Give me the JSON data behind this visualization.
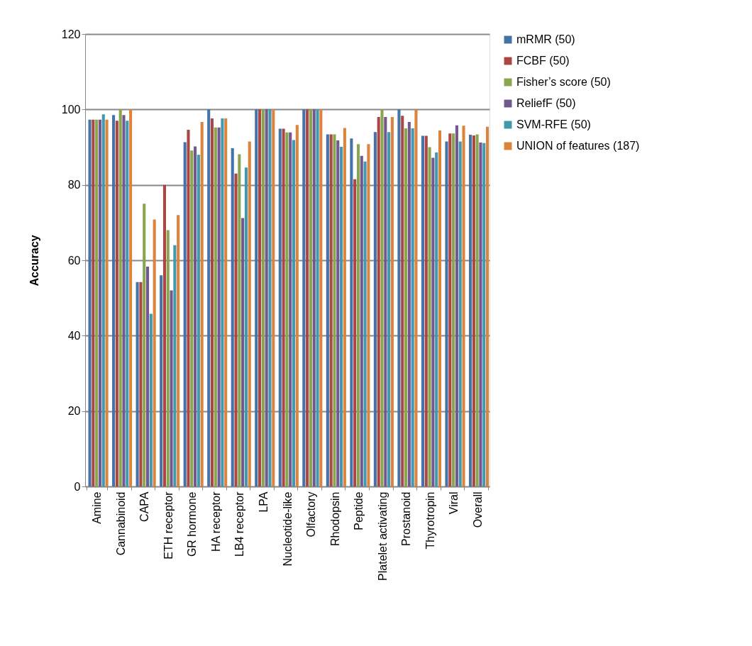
{
  "chart_data": {
    "type": "bar",
    "ylabel": "Accuracy",
    "categories": [
      "Amine",
      "Cannabinoid",
      "CAPA",
      "ETH receptor",
      "GR hormone",
      "HA receptor",
      "LB4 receptor",
      "LPA",
      "Nucleotide-like",
      "Olfactory",
      "Rhodopsin",
      "Peptide",
      "Platelet activating",
      "Prostanoid",
      "Thyrotropin",
      "Viral",
      "Overall"
    ],
    "series": [
      {
        "name": "mRMR (50)",
        "color": "#4572a7",
        "values": [
          97.3,
          98.5,
          54.2,
          56,
          91.3,
          100,
          89.7,
          100,
          94.9,
          100,
          93.4,
          92.3,
          94,
          100,
          93,
          91.5,
          93.3
        ]
      },
      {
        "name": "FCBF (50)",
        "color": "#aa4643",
        "values": [
          97.3,
          97,
          54.2,
          80,
          94.6,
          97.6,
          83,
          100,
          94.9,
          100,
          93.4,
          81.5,
          98,
          98.3,
          93,
          93.6,
          93.1
        ]
      },
      {
        "name": "Fisher’s score (50)",
        "color": "#89a54e",
        "values": [
          97.3,
          100,
          75,
          68,
          89.1,
          95.2,
          88.1,
          100,
          93.9,
          100,
          93.4,
          90.8,
          100,
          95,
          90,
          93.6,
          93.4
        ]
      },
      {
        "name": "ReliefF (50)",
        "color": "#71588f",
        "values": [
          97.3,
          98.5,
          58.3,
          52,
          90.2,
          95.2,
          71.2,
          100,
          93.9,
          100,
          91.8,
          87.7,
          98,
          96.7,
          87.2,
          95.8,
          91.2
        ]
      },
      {
        "name": "SVM-RFE (50)",
        "color": "#4198af",
        "values": [
          98.7,
          97,
          45.8,
          64,
          88,
          97.6,
          84.6,
          100,
          91.9,
          100,
          90.1,
          86.2,
          94,
          95,
          88.6,
          91.5,
          91.1
        ]
      },
      {
        "name": "UNION of features (187)",
        "color": "#db843d",
        "values": [
          97.3,
          100,
          70.8,
          72,
          96.7,
          97.6,
          91.5,
          100,
          95.9,
          100,
          95.1,
          90.8,
          98,
          100,
          94.4,
          95.7,
          95.4
        ]
      }
    ],
    "ylim": [
      0,
      120
    ],
    "yticks": [
      0,
      20,
      40,
      60,
      80,
      100,
      120
    ],
    "grid": "y",
    "legend": "right"
  }
}
